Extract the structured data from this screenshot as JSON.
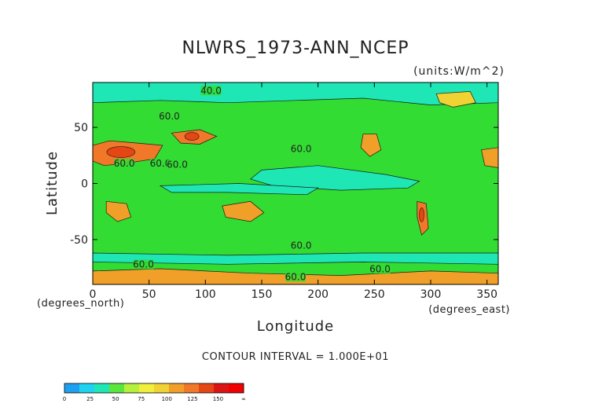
{
  "chart_data": {
    "type": "heatmap",
    "title": "NLWRS_1973-ANN_NCEP",
    "units": "(units:W/m^2)",
    "xlabel": "Longitude",
    "ylabel": "Latitude",
    "x_unit_label": "(degrees_east)",
    "y_unit_label": "(degrees_north)",
    "xlim": [
      0,
      360
    ],
    "ylim": [
      -90,
      90
    ],
    "x_ticks": [
      {
        "value": 0,
        "label": "0"
      },
      {
        "value": 50,
        "label": "50"
      },
      {
        "value": 100,
        "label": "100"
      },
      {
        "value": 150,
        "label": "150"
      },
      {
        "value": 200,
        "label": "200"
      },
      {
        "value": 250,
        "label": "250"
      },
      {
        "value": 300,
        "label": "300"
      },
      {
        "value": 350,
        "label": "350"
      }
    ],
    "y_ticks": [
      {
        "value": 50,
        "label": "50"
      },
      {
        "value": 0,
        "label": "0"
      },
      {
        "value": -50,
        "label": "-50"
      }
    ],
    "contour_interval_text": "CONTOUR INTERVAL = 1.000E+01",
    "contour_interval": 10,
    "contour_labels": [
      {
        "text": "40.0",
        "lon": 105,
        "lat": 80
      },
      {
        "text": "60.0",
        "lon": 68,
        "lat": 57
      },
      {
        "text": "60.0",
        "lon": 185,
        "lat": 28
      },
      {
        "text": "60.0",
        "lon": 60,
        "lat": 15
      },
      {
        "text": "60.0",
        "lon": 75,
        "lat": 14
      },
      {
        "text": "60.0",
        "lon": 28,
        "lat": 15
      },
      {
        "text": "60.0",
        "lon": 185,
        "lat": -58
      },
      {
        "text": "60.0",
        "lon": 45,
        "lat": -75
      },
      {
        "text": "60.0",
        "lon": 180,
        "lat": -86
      },
      {
        "text": "60.0",
        "lon": 255,
        "lat": -79
      }
    ],
    "colorbar": {
      "levels": [
        "0",
        "25",
        "50",
        "75",
        "100",
        "125",
        "150",
        "∞"
      ],
      "colors": [
        "#1ea0f0",
        "#1ed2f0",
        "#1ee6b4",
        "#5ae63c",
        "#b4f03c",
        "#f0f03c",
        "#f0d232",
        "#f0a028",
        "#f07828",
        "#e64614",
        "#dc1414",
        "#f00000"
      ]
    },
    "regions": [
      {
        "name": "background",
        "level": 2,
        "color": "#32dc32"
      },
      {
        "name": "north-polar-band",
        "level": 1,
        "color": "#1ee6b4"
      },
      {
        "name": "equatorial-band-pacific",
        "level": 1,
        "color": "#1ee6b4"
      },
      {
        "name": "south-ocean-band",
        "level": 1,
        "color": "#1ee6b4"
      },
      {
        "name": "sahara-arabia",
        "level": 6,
        "color": "#f07828"
      },
      {
        "name": "central-asia",
        "level": 6,
        "color": "#f07828"
      },
      {
        "name": "north-america-west",
        "level": 5,
        "color": "#f0a028"
      },
      {
        "name": "mexico-us-southwest",
        "level": 5,
        "color": "#f0a028"
      },
      {
        "name": "greenland",
        "level": 4,
        "color": "#f0d232"
      },
      {
        "name": "australia",
        "level": 5,
        "color": "#f0a028"
      },
      {
        "name": "southern-africa",
        "level": 5,
        "color": "#f0a028"
      },
      {
        "name": "andes",
        "level": 6,
        "color": "#f07828"
      },
      {
        "name": "antarctica-coast",
        "level": 5,
        "color": "#f0a028"
      }
    ]
  }
}
